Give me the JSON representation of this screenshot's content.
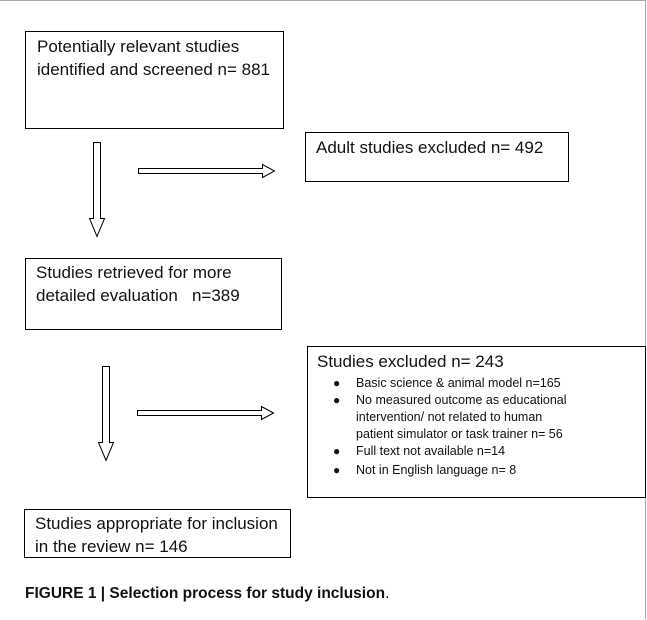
{
  "boxes": {
    "screened": {
      "lines": [
        "Potentially relevant studies",
        "identified and screened n= 881"
      ]
    },
    "adult_excluded": {
      "lines": [
        "Adult studies excluded n= 492"
      ]
    },
    "retrieved": {
      "lines": [
        "Studies retrieved for more",
        "detailed evaluation   n=389"
      ]
    },
    "excluded": {
      "title": "Studies excluded n= 243",
      "reasons": [
        {
          "lines": [
            "Basic science & animal model n=165"
          ]
        },
        {
          "lines": [
            "No measured outcome as educational",
            "intervention/ not related to human",
            "patient simulator or task trainer n= 56"
          ]
        },
        {
          "lines": [
            "Full text not available n=14"
          ]
        },
        {
          "lines": [
            "Not in English language n= 8"
          ]
        }
      ]
    },
    "included": {
      "lines": [
        "Studies appropriate for inclusion",
        "in the review n= 146"
      ]
    }
  },
  "caption": {
    "bold": "FIGURE 1 | Selection process for study inclusion",
    "trailing": "."
  }
}
